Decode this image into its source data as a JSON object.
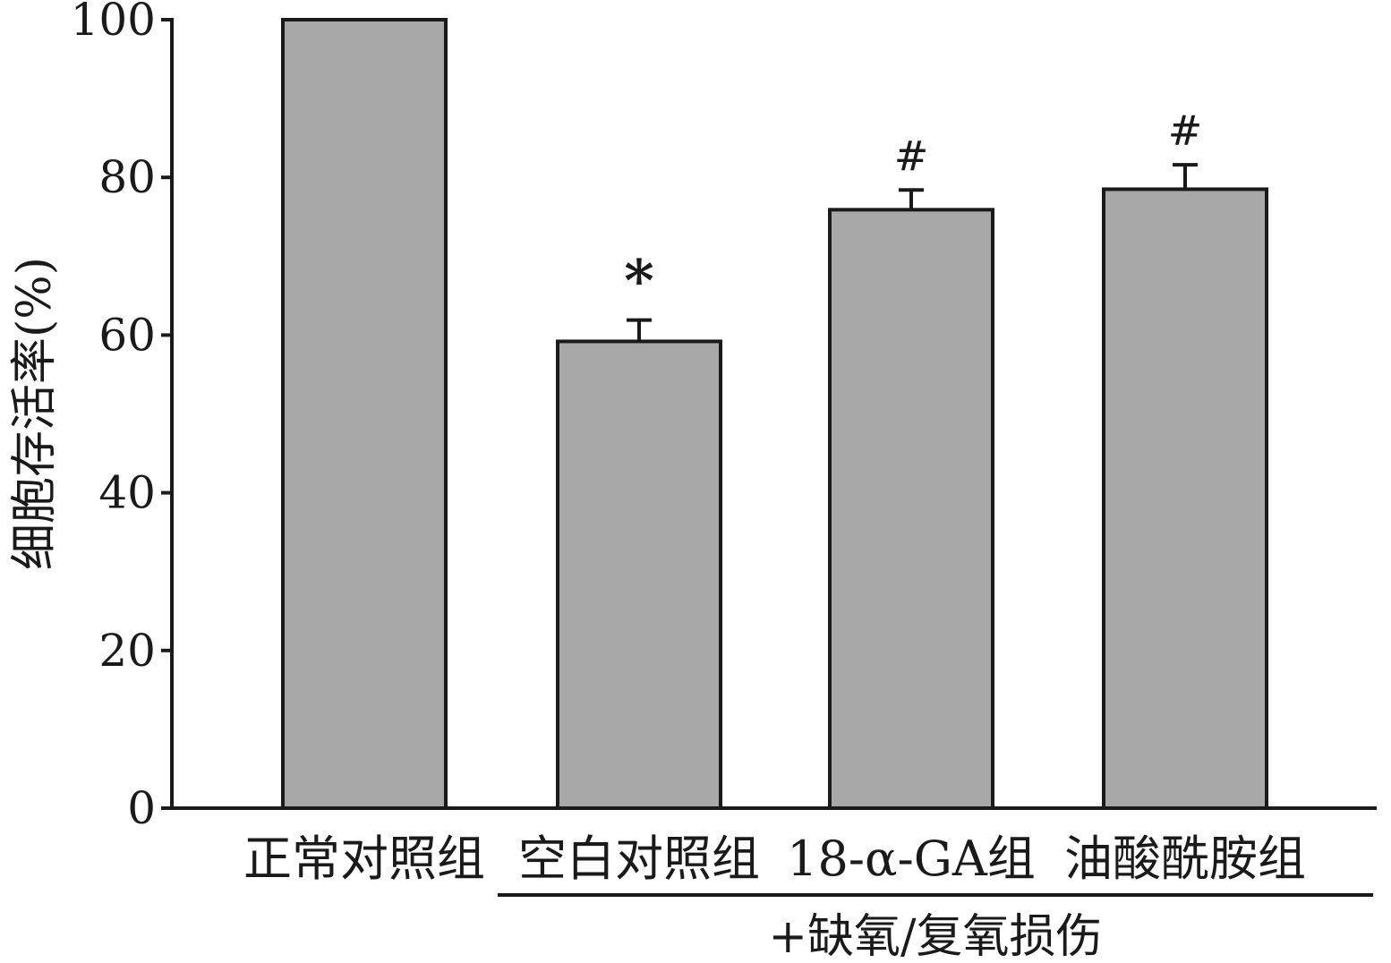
{
  "chart_data": {
    "type": "bar",
    "title": "",
    "xlabel": "",
    "ylabel": "细胞存活率(%)",
    "categories": [
      "正常对照组",
      "空白对照组",
      "18-α-GA组",
      "油酸酰胺组"
    ],
    "values": [
      100,
      59.2,
      75.9,
      78.5
    ],
    "error": [
      0,
      2.7,
      2.5,
      3.1
    ],
    "annotations": [
      "",
      "*",
      "#",
      "#"
    ],
    "ylim": [
      0,
      100
    ],
    "yticks": [
      0,
      20,
      40,
      60,
      80,
      100
    ],
    "group_label": "+缺氧/复氧损伤",
    "grid": false,
    "bar_color": "#a8a8a8",
    "edge_color": "#1a1a1a"
  }
}
